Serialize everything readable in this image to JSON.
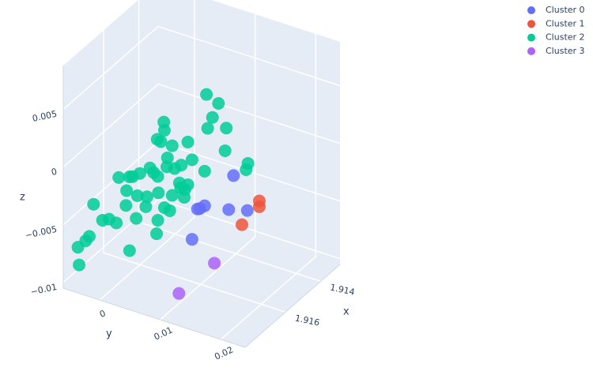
{
  "chart_data": {
    "type": "scatter3d",
    "xlabel": "x",
    "ylabel": "y",
    "zlabel": "z",
    "xlim": [
      1.9129,
      1.9183
    ],
    "ylim": [
      -0.006,
      0.024
    ],
    "zlim": [
      -0.0105,
      0.0088
    ],
    "xticks": [
      1.914,
      1.916
    ],
    "yticks": [
      0,
      0.01,
      0.02
    ],
    "zticks": [
      {
        "value": -0.01,
        "label": "−0.01"
      },
      {
        "value": -0.005,
        "label": "−0.005"
      },
      0,
      0.005
    ],
    "grid": true,
    "legend": "top-right",
    "series": [
      {
        "name": "Cluster 0",
        "color": "#636efa",
        "x": [
          1.9152,
          1.9156,
          1.9157,
          1.9157,
          1.9153,
          1.915,
          1.9158
        ],
        "y": [
          0.0131,
          0.0095,
          0.0086,
          0.009,
          0.0126,
          0.0148,
          0.008
        ],
        "z": [
          -0.0016,
          -0.0043,
          -0.0046,
          -0.0045,
          -0.0045,
          -0.0046,
          -0.0072
        ]
      },
      {
        "name": "Cluster 1",
        "color": "#ef553b",
        "x": [
          1.9148,
          1.9148,
          1.9151
        ],
        "y": [
          0.0162,
          0.0162,
          0.0142
        ],
        "z": [
          -0.0038,
          -0.0043,
          -0.0058
        ]
      },
      {
        "name": "Cluster 2",
        "color": "#00cc96",
        "x": [
          1.9156,
          1.9154,
          1.9155,
          1.9153,
          1.9156,
          1.9162,
          1.9162,
          1.9163,
          1.9163,
          1.9161,
          1.9159,
          1.9153,
          1.915,
          1.915,
          1.9162,
          1.9158,
          1.916,
          1.9162,
          1.9161,
          1.9156,
          1.9169,
          1.9167,
          1.9167,
          1.9166,
          1.9164,
          1.9164,
          1.9163,
          1.916,
          1.916,
          1.9159,
          1.9159,
          1.9163,
          1.9166,
          1.9165,
          1.9168,
          1.9161,
          1.9173,
          1.9168,
          1.9165,
          1.9162,
          1.9161,
          1.9159,
          1.9166,
          1.9171,
          1.917,
          1.9169,
          1.9163,
          1.9163,
          1.9173,
          1.9174,
          1.9175,
          1.9167,
          1.9175
        ],
        "y": [
          0.0098,
          0.0112,
          0.0105,
          0.0122,
          0.01,
          0.0045,
          0.0046,
          0.0037,
          0.0043,
          0.0056,
          0.0076,
          0.012,
          0.0149,
          0.0146,
          0.0051,
          0.008,
          0.0068,
          0.005,
          0.006,
          0.0095,
          -0.0009,
          0.0003,
          0.0008,
          0.0017,
          0.0028,
          0.0034,
          0.0038,
          0.0065,
          0.0067,
          0.0071,
          0.0076,
          0.0039,
          0.0013,
          0.0026,
          0.0001,
          0.0056,
          -0.0039,
          0,
          0.0024,
          0.0046,
          0.0052,
          0.007,
          0.0011,
          -0.003,
          -0.0022,
          -0.0013,
          0.0038,
          0.0036,
          -0.0046,
          -0.0049,
          -0.0059,
          0.0003,
          -0.0057
        ],
        "z": [
          0.0054,
          0.0046,
          0.0034,
          0.0025,
          0.0025,
          0.0029,
          0.0022,
          0.0014,
          0.0013,
          0.0009,
          0.0013,
          0.0005,
          -0.0005,
          -0.0011,
          -0.0001,
          -0.0003,
          -0.0007,
          -0.0009,
          -0.001,
          -0.0013,
          -0.0019,
          -0.0019,
          -0.0018,
          -0.0015,
          -0.0011,
          -0.0014,
          -0.0018,
          -0.0023,
          -0.0027,
          -0.0029,
          -0.0024,
          -0.0032,
          -0.0035,
          -0.0035,
          -0.003,
          -0.0034,
          -0.0042,
          -0.0043,
          -0.0044,
          -0.0045,
          -0.0048,
          -0.0036,
          -0.0055,
          -0.0057,
          -0.0056,
          -0.0059,
          -0.0056,
          -0.0068,
          -0.0071,
          -0.0074,
          -0.008,
          -0.0083,
          -0.0095
        ]
      },
      {
        "name": "Cluster 3",
        "color": "#ab63fa",
        "x": [
          1.9156,
          1.9172
        ],
        "y": [
          0.0111,
          0.0099
        ],
        "z": [
          -0.009,
          -0.0097
        ]
      }
    ]
  }
}
